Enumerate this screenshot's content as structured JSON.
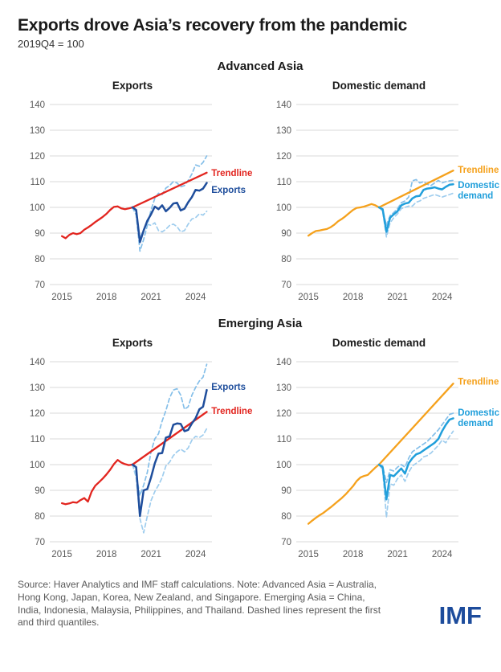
{
  "header": {
    "title": "Exports drove Asia’s recovery from the pandemic",
    "subtitle": "2019Q4 = 100"
  },
  "sections": [
    {
      "title": "Advanced Asia"
    },
    {
      "title": "Emerging Asia"
    }
  ],
  "footer": {
    "source_note": "Source: Haver Analytics and IMF staff calculations. Note: Advanced Asia = Australia,\nHong Kong, Japan, Korea, New Zealand, and Singapore. Emerging Asia = China,\nIndia, Indonesia, Malaysia, Philippines, and Thailand. Dashed lines represent the first\nand third quantiles.",
    "logo": "IMF"
  },
  "colors": {
    "red": "#e2251f",
    "dark_blue": "#1f4e9c",
    "cyan": "#219fdb",
    "orange": "#f5a11c",
    "light_blue_dashed": "#85bfe9",
    "grid": "#d9d9d9",
    "axis_text": "#595959",
    "title_text": "#1a1a1a",
    "note_text": "#595959",
    "logo_blue": "#1d4c9c"
  },
  "chart_data": [
    {
      "type": "line",
      "group": "Advanced Asia",
      "title": "Exports",
      "ylim": [
        70,
        140
      ],
      "yticks": [
        70,
        80,
        90,
        100,
        110,
        120,
        130,
        140
      ],
      "xticks": [
        2015,
        2018,
        2021,
        2024
      ],
      "grid": true,
      "series": [
        {
          "role": "quantile-third",
          "name": "Third quantile",
          "color": "#85bfe9",
          "width": 1.7,
          "dashed": true,
          "x0": 2019.75,
          "values": [
            100,
            97,
            83,
            87.5,
            93,
            99,
            103.5,
            105.5,
            105,
            107.5,
            108.5,
            110,
            109.5,
            108,
            108.5,
            110.5,
            113,
            116.5,
            116,
            117.5,
            120
          ]
        },
        {
          "role": "quantile-first",
          "name": "First quantile",
          "color": "#9fcdee",
          "width": 1.7,
          "dashed": true,
          "x0": 2019.75,
          "values": [
            100,
            98,
            88,
            91.5,
            93.5,
            93,
            94,
            91,
            90.5,
            91.5,
            93,
            93.5,
            92.5,
            90.5,
            91,
            93.5,
            95.5,
            96,
            97.5,
            97,
            98.5
          ]
        },
        {
          "role": "trendline",
          "name": "Trendline",
          "color": "#e2251f",
          "width": 2.3,
          "dashed": false,
          "x": [
            2019.75,
            2024.75
          ],
          "values": [
            100,
            113.5
          ]
        },
        {
          "role": "history",
          "name": "Exports (pre-2020)",
          "color": "#e2251f",
          "width": 2.3,
          "dashed": false,
          "x0": 2015.0,
          "values": [
            88.8,
            88,
            89.3,
            90,
            89.6,
            90,
            91.3,
            92.2,
            93.2,
            94.3,
            95.3,
            96.3,
            97.5,
            99,
            100.2,
            100.4,
            99.6,
            99.3,
            99.6,
            100
          ]
        },
        {
          "role": "actual",
          "name": "Exports",
          "color": "#1f4e9c",
          "width": 2.5,
          "dashed": false,
          "x0": 2019.75,
          "values": [
            100,
            99,
            86.5,
            91,
            94.8,
            97.3,
            100.3,
            99.3,
            100.8,
            98.5,
            99.8,
            101.5,
            101.8,
            98.8,
            99.5,
            102,
            104,
            106.8,
            106.5,
            107.3,
            109.5
          ]
        }
      ],
      "annotations": [
        {
          "lines": [
            "Trendline"
          ],
          "x": 2024.95,
          "y": 113.4,
          "color": "#e2251f"
        },
        {
          "lines": [
            "Exports"
          ],
          "x": 2024.95,
          "y": 106.8,
          "color": "#1f4e9c"
        }
      ]
    },
    {
      "type": "line",
      "group": "Advanced Asia",
      "title": "Domestic demand",
      "ylim": [
        70,
        140
      ],
      "yticks": [
        70,
        80,
        90,
        100,
        110,
        120,
        130,
        140
      ],
      "xticks": [
        2015,
        2018,
        2021,
        2024
      ],
      "grid": true,
      "series": [
        {
          "role": "quantile-third",
          "name": "Third quantile",
          "color": "#85bfe9",
          "width": 1.7,
          "dashed": true,
          "x0": 2019.75,
          "values": [
            100,
            99,
            93,
            96.8,
            98,
            99.5,
            101.8,
            102.5,
            104,
            110.3,
            110.8,
            109.5,
            110,
            109,
            108.5,
            109.5,
            110.5,
            109.5,
            110,
            110.3,
            110.5
          ]
        },
        {
          "role": "quantile-first",
          "name": "First quantile",
          "color": "#9fcdee",
          "width": 1.7,
          "dashed": true,
          "x0": 2019.75,
          "values": [
            100,
            98.5,
            88.5,
            94,
            96,
            97.5,
            99.5,
            100,
            100.5,
            100.5,
            102,
            102.5,
            103.5,
            104,
            104.5,
            105,
            104.5,
            104,
            104.5,
            105,
            105.5
          ]
        },
        {
          "role": "trendline",
          "name": "Trendline",
          "color": "#f5a11c",
          "width": 2.3,
          "dashed": false,
          "x": [
            2019.75,
            2024.75
          ],
          "values": [
            100,
            114.3
          ]
        },
        {
          "role": "history",
          "name": "Domestic demand (pre-2020)",
          "color": "#f5a11c",
          "width": 2.3,
          "dashed": false,
          "x0": 2015.0,
          "values": [
            89,
            90,
            90.8,
            91,
            91.3,
            91.6,
            92.3,
            93.3,
            94.6,
            95.5,
            96.6,
            97.8,
            99,
            99.8,
            100,
            100.3,
            100.8,
            101.3,
            100.8,
            100
          ]
        },
        {
          "role": "actual",
          "name": "Domestic demand",
          "color": "#219fdb",
          "width": 2.5,
          "dashed": false,
          "x0": 2019.75,
          "values": [
            100,
            99.3,
            90.5,
            96,
            97.3,
            98.5,
            100.8,
            101.5,
            101.8,
            103.5,
            104.3,
            104.5,
            106.8,
            107.3,
            107.5,
            107.8,
            107.3,
            107,
            108,
            108.8,
            109
          ]
        }
      ],
      "annotations": [
        {
          "lines": [
            "Trendline"
          ],
          "x": 2024.95,
          "y": 114.7,
          "color": "#f5a11c"
        },
        {
          "lines": [
            "Domestic",
            "demand"
          ],
          "x": 2024.95,
          "y": 108.8,
          "color": "#219fdb"
        }
      ]
    },
    {
      "type": "line",
      "group": "Emerging Asia",
      "title": "Exports",
      "ylim": [
        70,
        140
      ],
      "yticks": [
        70,
        80,
        90,
        100,
        110,
        120,
        130,
        140
      ],
      "xticks": [
        2015,
        2018,
        2021,
        2024
      ],
      "grid": true,
      "series": [
        {
          "role": "quantile-third",
          "name": "Third quantile",
          "color": "#85bfe9",
          "width": 1.7,
          "dashed": true,
          "x0": 2019.75,
          "values": [
            100,
            96,
            88,
            92,
            97,
            105,
            110,
            112,
            117,
            121,
            126,
            129,
            129.5,
            127,
            121.5,
            122.5,
            127,
            130,
            132.5,
            134,
            139
          ]
        },
        {
          "role": "quantile-first",
          "name": "First quantile",
          "color": "#9fcdee",
          "width": 1.7,
          "dashed": true,
          "x0": 2019.75,
          "values": [
            100,
            95,
            79,
            73.5,
            80,
            86,
            89.5,
            92,
            95,
            99.5,
            101,
            103.5,
            105,
            106,
            105,
            106.5,
            109.5,
            111,
            110.5,
            111.5,
            114
          ]
        },
        {
          "role": "trendline",
          "name": "Trendline",
          "color": "#e2251f",
          "width": 2.3,
          "dashed": false,
          "x": [
            2019.75,
            2024.75
          ],
          "values": [
            100,
            120.5
          ]
        },
        {
          "role": "history",
          "name": "Exports (pre-2020)",
          "color": "#e2251f",
          "width": 2.3,
          "dashed": false,
          "x0": 2015.0,
          "values": [
            85,
            84.6,
            84.9,
            85.4,
            85.2,
            86.2,
            87,
            85.6,
            89.5,
            91.8,
            93.2,
            94.6,
            96.2,
            98,
            100.2,
            101.8,
            100.8,
            100.2,
            99.8,
            100
          ]
        },
        {
          "role": "actual",
          "name": "Exports",
          "color": "#1f4e9c",
          "width": 2.5,
          "dashed": false,
          "x0": 2019.75,
          "values": [
            100,
            99,
            80,
            90,
            90.5,
            95,
            100.5,
            104.3,
            104.5,
            110.5,
            111,
            115.5,
            116,
            115.8,
            113,
            113.5,
            116,
            118,
            121.5,
            122.5,
            129
          ]
        }
      ],
      "annotations": [
        {
          "lines": [
            "Exports"
          ],
          "x": 2024.95,
          "y": 130.3,
          "color": "#1f4e9c"
        },
        {
          "lines": [
            "Trendline"
          ],
          "x": 2024.95,
          "y": 121,
          "color": "#e2251f"
        }
      ]
    },
    {
      "type": "line",
      "group": "Emerging Asia",
      "title": "Domestic demand",
      "ylim": [
        70,
        140
      ],
      "yticks": [
        70,
        80,
        90,
        100,
        110,
        120,
        130,
        140
      ],
      "xticks": [
        2015,
        2018,
        2021,
        2024
      ],
      "grid": true,
      "series": [
        {
          "role": "quantile-third",
          "name": "Third quantile",
          "color": "#85bfe9",
          "width": 1.7,
          "dashed": true,
          "x0": 2019.75,
          "values": [
            100,
            99.5,
            93,
            98,
            97.5,
            99,
            100,
            99,
            102.5,
            105,
            106,
            107,
            108,
            109,
            110.5,
            112,
            113.5,
            115.5,
            117.5,
            119.5,
            120
          ]
        },
        {
          "role": "quantile-first",
          "name": "First quantile",
          "color": "#9fcdee",
          "width": 1.7,
          "dashed": true,
          "x0": 2019.75,
          "values": [
            100,
            98,
            79.5,
            92.5,
            92,
            94.5,
            96,
            93.5,
            97,
            99.5,
            100.5,
            101.5,
            103,
            103.5,
            104.5,
            106,
            107.5,
            109.5,
            108.5,
            111,
            113
          ]
        },
        {
          "role": "trendline",
          "name": "Trendline",
          "color": "#f5a11c",
          "width": 2.3,
          "dashed": false,
          "x": [
            2019.75,
            2024.75
          ],
          "values": [
            100,
            131.5
          ]
        },
        {
          "role": "history",
          "name": "Domestic demand (pre-2020)",
          "color": "#f5a11c",
          "width": 2.3,
          "dashed": false,
          "x0": 2015.0,
          "values": [
            77,
            78.2,
            79.3,
            80.3,
            81.2,
            82.3,
            83.4,
            84.6,
            85.8,
            87,
            88.4,
            90,
            91.6,
            93.6,
            95,
            95.6,
            96,
            97.4,
            98.8,
            100
          ]
        },
        {
          "role": "actual",
          "name": "Domestic demand",
          "color": "#219fdb",
          "width": 2.5,
          "dashed": false,
          "x0": 2019.75,
          "values": [
            100,
            99,
            86.5,
            96,
            95.5,
            97,
            98.5,
            96.5,
            100.5,
            102.5,
            104,
            104.5,
            105.5,
            106.5,
            107.5,
            108.5,
            110,
            113,
            115.5,
            117.5,
            118
          ]
        }
      ],
      "annotations": [
        {
          "lines": [
            "Trendline"
          ],
          "x": 2024.95,
          "y": 132.3,
          "color": "#f5a11c"
        },
        {
          "lines": [
            "Domestic",
            "demand"
          ],
          "x": 2024.95,
          "y": 120.3,
          "color": "#219fdb"
        }
      ]
    }
  ]
}
